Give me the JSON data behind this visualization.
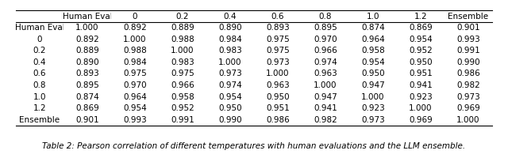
{
  "col_headers": [
    "Human Eval",
    "0",
    "0.2",
    "0.4",
    "0.6",
    "0.8",
    "1.0",
    "1.2",
    "Ensemble"
  ],
  "row_headers": [
    "Human Eval",
    "0",
    "0.2",
    "0.4",
    "0.6",
    "0.8",
    "1.0",
    "1.2",
    "Ensemble"
  ],
  "table_data": [
    [
      1.0,
      0.892,
      0.889,
      0.89,
      0.893,
      0.895,
      0.874,
      0.869,
      0.901
    ],
    [
      0.892,
      1.0,
      0.988,
      0.984,
      0.975,
      0.97,
      0.964,
      0.954,
      0.993
    ],
    [
      0.889,
      0.988,
      1.0,
      0.983,
      0.975,
      0.966,
      0.958,
      0.952,
      0.991
    ],
    [
      0.89,
      0.984,
      0.983,
      1.0,
      0.973,
      0.974,
      0.954,
      0.95,
      0.99
    ],
    [
      0.893,
      0.975,
      0.975,
      0.973,
      1.0,
      0.963,
      0.95,
      0.951,
      0.986
    ],
    [
      0.895,
      0.97,
      0.966,
      0.974,
      0.963,
      1.0,
      0.947,
      0.941,
      0.982
    ],
    [
      0.874,
      0.964,
      0.958,
      0.954,
      0.95,
      0.947,
      1.0,
      0.923,
      0.973
    ],
    [
      0.869,
      0.954,
      0.952,
      0.95,
      0.951,
      0.941,
      0.923,
      1.0,
      0.969
    ],
    [
      0.901,
      0.993,
      0.991,
      0.99,
      0.986,
      0.982,
      0.973,
      0.969,
      1.0
    ]
  ],
  "caption": "Table 2: Pearson correlation of different temperatures with human evaluations and the LLM ensemble.",
  "font_size": 7.5,
  "caption_font_size": 7.5,
  "background_color": "#ffffff",
  "text_color": "#000000",
  "line_color": "#000000"
}
